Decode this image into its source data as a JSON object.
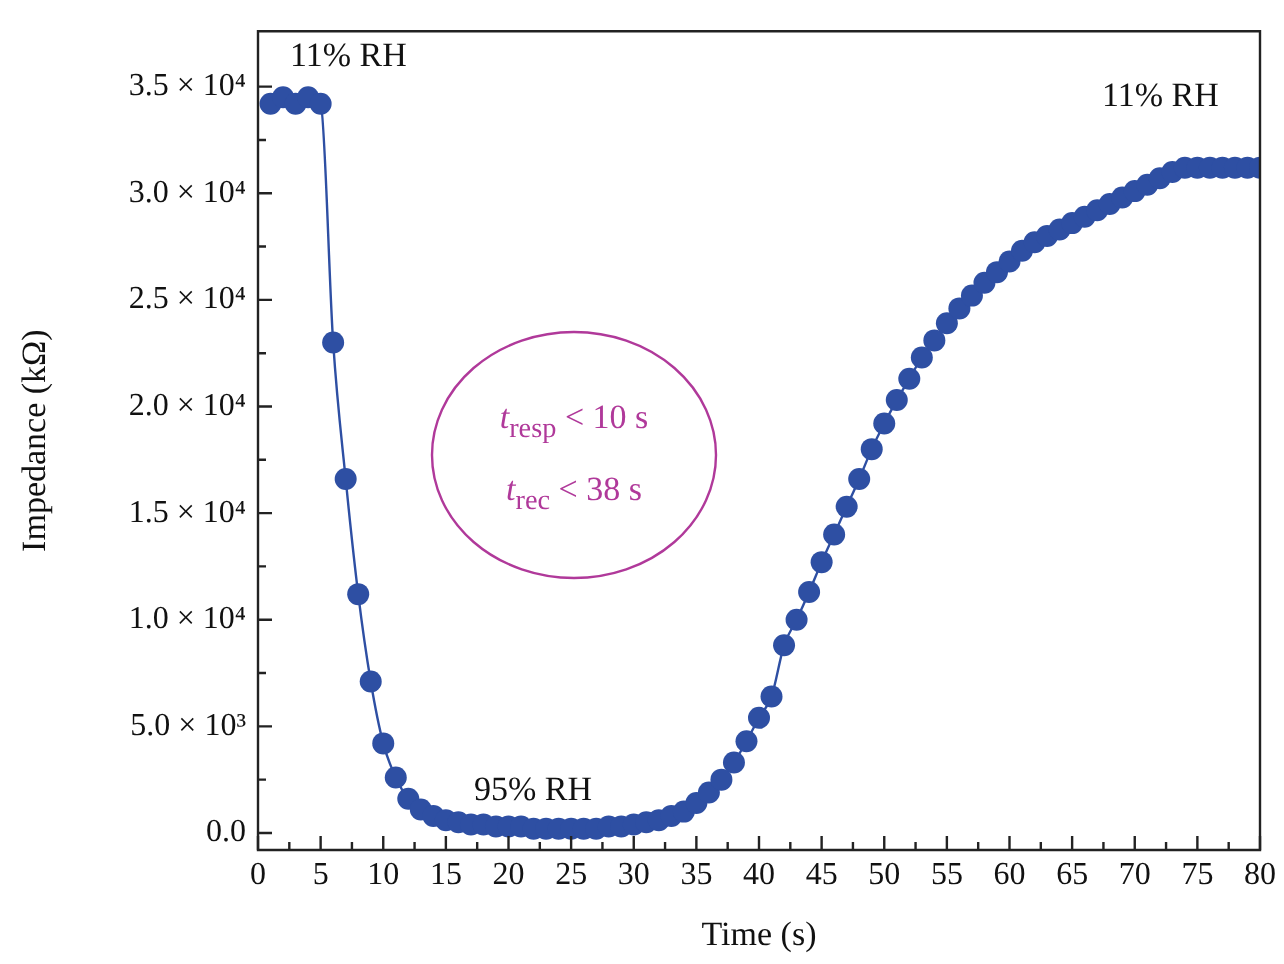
{
  "chart_data": {
    "type": "line",
    "xlabel": "Time (s)",
    "ylabel": "Impedance (kΩ)",
    "x": [
      1,
      2,
      3,
      4,
      5,
      6,
      7,
      8,
      9,
      10,
      11,
      12,
      13,
      14,
      15,
      16,
      17,
      18,
      19,
      20,
      21,
      22,
      23,
      24,
      25,
      26,
      27,
      28,
      29,
      30,
      31,
      32,
      33,
      34,
      35,
      36,
      37,
      38,
      39,
      40,
      41,
      42,
      43,
      44,
      45,
      46,
      47,
      48,
      49,
      50,
      51,
      52,
      53,
      54,
      55,
      56,
      57,
      58,
      59,
      60,
      61,
      62,
      63,
      64,
      65,
      66,
      67,
      68,
      69,
      70,
      71,
      72,
      73,
      74,
      75,
      76,
      77,
      78,
      79,
      80
    ],
    "series": [
      {
        "color": "#2e4fa3",
        "values": [
          34200,
          34500,
          34200,
          34500,
          34200,
          23000,
          16600,
          11200,
          7100,
          4200,
          2600,
          1600,
          1100,
          800,
          600,
          500,
          400,
          400,
          300,
          300,
          300,
          200,
          200,
          200,
          200,
          200,
          200,
          300,
          300,
          400,
          500,
          600,
          800,
          1000,
          1400,
          1900,
          2500,
          3300,
          4300,
          5400,
          6400,
          8800,
          10000,
          11300,
          12700,
          14000,
          15300,
          16600,
          18000,
          19200,
          20300,
          21300,
          22300,
          23100,
          23900,
          24600,
          25200,
          25800,
          26300,
          26800,
          27300,
          27700,
          28000,
          28300,
          28600,
          28900,
          29200,
          29500,
          29800,
          30100,
          30400,
          30700,
          31000,
          31200,
          31200,
          31200,
          31200,
          31200,
          31200,
          31200
        ]
      }
    ],
    "xlim": [
      0,
      80
    ],
    "xticks": [
      0,
      5,
      10,
      15,
      20,
      25,
      30,
      35,
      40,
      45,
      50,
      55,
      60,
      65,
      70,
      75,
      80
    ],
    "ylim": [
      -800,
      37600
    ],
    "yticks": [
      {
        "value": 0,
        "label": "0.0"
      },
      {
        "value": 5000,
        "label": "5.0 × 10³"
      },
      {
        "value": 10000,
        "label": "1.0 × 10⁴"
      },
      {
        "value": 15000,
        "label": "1.5 × 10⁴"
      },
      {
        "value": 20000,
        "label": "2.0 × 10⁴"
      },
      {
        "value": 25000,
        "label": "2.5 × 10⁴"
      },
      {
        "value": 30000,
        "label": "3.0 × 10⁴"
      },
      {
        "value": 35000,
        "label": "3.5 × 10⁴"
      }
    ],
    "grid": false,
    "legend": false,
    "marker": "circle",
    "line_style": "solid",
    "annotations": [
      "11% RH",
      "95% RH",
      "11% RH",
      "t$_{resp}$ < 10 s",
      "t$_{rec}$ < 38 s"
    ]
  }
}
